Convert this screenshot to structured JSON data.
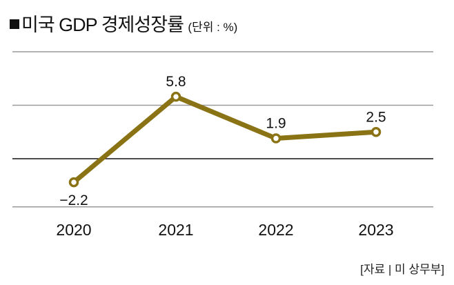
{
  "chart_data": {
    "type": "line",
    "title": "미국 GDP 경제성장률",
    "unit": "(단위 : %)",
    "categories": [
      "2020",
      "2021",
      "2022",
      "2023"
    ],
    "series": [
      {
        "name": "GDP 경제성장률",
        "values": [
          -2.2,
          5.8,
          1.9,
          2.5
        ],
        "labels": [
          "−2.2",
          "5.8",
          "1.9",
          "2.5"
        ]
      }
    ],
    "ylim": [
      -4.5,
      10
    ],
    "gridlines": [
      10,
      5,
      -4.5
    ],
    "zero_line": 0,
    "line_color": "#8a7314",
    "source": "[자료 | 미 상무부]"
  }
}
